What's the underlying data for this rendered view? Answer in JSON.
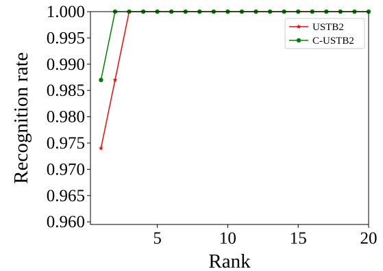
{
  "chart_data": {
    "type": "line",
    "title": "",
    "xlabel": "Rank",
    "ylabel": "Recognition rate",
    "xlim": [
      0.25,
      20
    ],
    "ylim": [
      0.9595,
      1.0
    ],
    "x_ticks": [
      5,
      10,
      15,
      20
    ],
    "x_tick_labels": [
      "5",
      "10",
      "15",
      "20"
    ],
    "y_ticks": [
      0.96,
      0.965,
      0.97,
      0.975,
      0.98,
      0.985,
      0.99,
      0.995,
      1.0
    ],
    "y_tick_labels": [
      "0.960",
      "0.965",
      "0.970",
      "0.975",
      "0.980",
      "0.985",
      "0.990",
      "0.995",
      "1.000"
    ],
    "grid": false,
    "legend_position": "top-right",
    "x": [
      1,
      2,
      3,
      4,
      5,
      6,
      7,
      8,
      9,
      10,
      11,
      12,
      13,
      14,
      15,
      16,
      17,
      18,
      19,
      20
    ],
    "series": [
      {
        "name": "USTB2",
        "color": "#ff0000",
        "marker": "star",
        "values": [
          0.974,
          0.987,
          1.0,
          1.0,
          1.0,
          1.0,
          1.0,
          1.0,
          1.0,
          1.0,
          1.0,
          1.0,
          1.0,
          1.0,
          1.0,
          1.0,
          1.0,
          1.0,
          1.0,
          1.0
        ]
      },
      {
        "name": "C-USTB2",
        "color": "#008000",
        "marker": "circle",
        "values": [
          0.987,
          1.0,
          1.0,
          1.0,
          1.0,
          1.0,
          1.0,
          1.0,
          1.0,
          1.0,
          1.0,
          1.0,
          1.0,
          1.0,
          1.0,
          1.0,
          1.0,
          1.0,
          1.0,
          1.0
        ]
      }
    ]
  }
}
